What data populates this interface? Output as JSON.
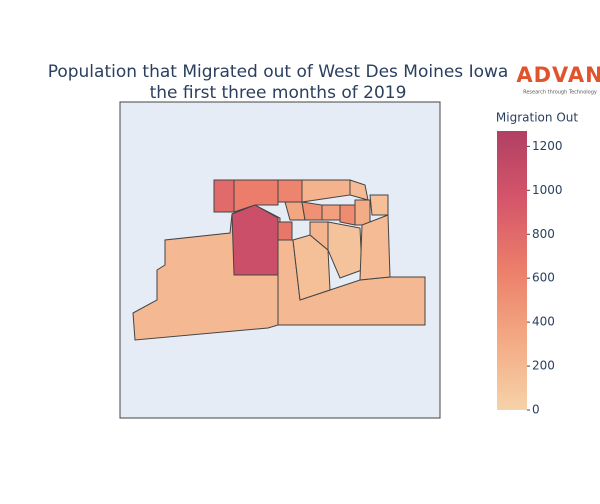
{
  "chart_data": {
    "type": "choropleth",
    "title": [
      "Population that Migrated out of West Des Moines Iowa",
      "the first three months of 2019"
    ],
    "logo": {
      "name": "ADVAN",
      "tagline": "Research through Technology"
    },
    "colorbar_title": "Migration Out",
    "colorscale": [
      "#f6d2a9",
      "#f3aa84",
      "#ec7f6a",
      "#d6566a",
      "#b13f64"
    ],
    "zlim": [
      0,
      1270
    ],
    "zticks": [
      0,
      200,
      400,
      600,
      800,
      1000,
      1200
    ],
    "values": [
      200,
      1050,
      800,
      650,
      600,
      200,
      150,
      250,
      180,
      350,
      500,
      400,
      550,
      300,
      150,
      700,
      120,
      180,
      230
    ]
  }
}
